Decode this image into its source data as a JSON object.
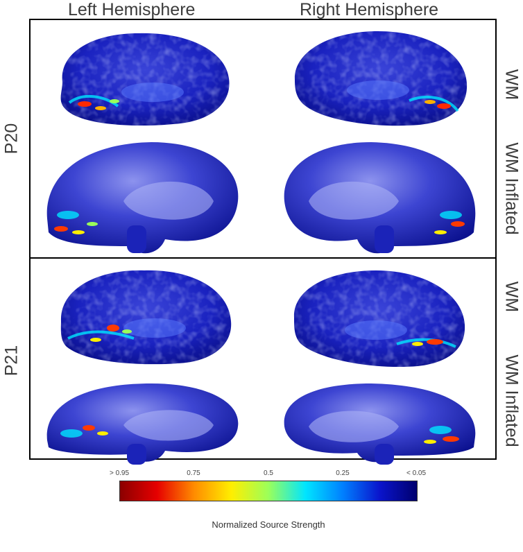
{
  "headers": {
    "left": "Left Hemisphere",
    "right": "Right Hemisphere"
  },
  "subjects": [
    {
      "id": "P20",
      "rows": [
        "WM",
        "WM Inflated"
      ]
    },
    {
      "id": "P21",
      "rows": [
        "WM",
        "WM Inflated"
      ]
    }
  ],
  "colorbar": {
    "title": "Normalized Source Strength",
    "ticks": [
      "> 0.95",
      "0.75",
      "0.5",
      "0.25",
      "< 0.05"
    ],
    "colors": [
      "#8b0000",
      "#e60000",
      "#ff8c00",
      "#ffee00",
      "#9bff5a",
      "#00e5ff",
      "#0080ff",
      "#0a14cc",
      "#00006e"
    ]
  },
  "colors": {
    "surface_base": "#1218b8",
    "surface_highlight": "#7f86e6"
  }
}
